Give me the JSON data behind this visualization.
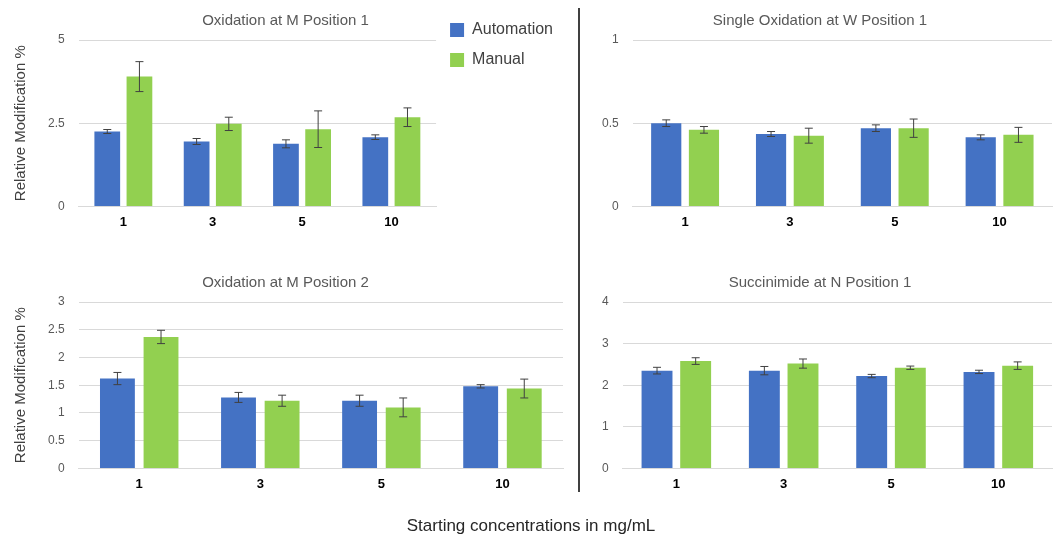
{
  "chart_data": [
    {
      "type": "bar",
      "title": "Oxidation at M Position 1",
      "ylabel": "Relative Modification %",
      "categories": [
        "1",
        "3",
        "5",
        "10"
      ],
      "ylim": [
        0,
        5
      ],
      "yticks": [
        0,
        2.5,
        5
      ],
      "grid": "y",
      "legend": "top right",
      "series": [
        {
          "name": "Automation",
          "color": "#4472c4",
          "values": [
            2.25,
            1.95,
            1.88,
            2.08
          ],
          "errors": [
            0.06,
            0.09,
            0.12,
            0.07
          ]
        },
        {
          "name": "Manual",
          "color": "#92d050",
          "values": [
            3.9,
            2.48,
            2.32,
            2.68
          ],
          "errors": [
            0.45,
            0.2,
            0.55,
            0.28
          ]
        }
      ]
    },
    {
      "type": "bar",
      "title": "Single Oxidation at W Position 1",
      "categories": [
        "1",
        "3",
        "5",
        "10"
      ],
      "ylim": [
        0,
        1
      ],
      "yticks": [
        0,
        0.5,
        1
      ],
      "grid": "y",
      "series": [
        {
          "color": "#4472c4",
          "values": [
            0.5,
            0.435,
            0.47,
            0.415
          ],
          "errors": [
            0.02,
            0.015,
            0.02,
            0.015
          ]
        },
        {
          "color": "#92d050",
          "values": [
            0.46,
            0.425,
            0.47,
            0.43
          ],
          "errors": [
            0.02,
            0.045,
            0.055,
            0.045
          ]
        }
      ]
    },
    {
      "type": "bar",
      "title": "Oxidation at M Position 2",
      "ylabel": "Relative Modification %",
      "xlabel": "Starting concentrations in mg/mL",
      "categories": [
        "1",
        "3",
        "5",
        "10"
      ],
      "ylim": [
        0,
        3
      ],
      "yticks": [
        0,
        0.5,
        1,
        1.5,
        2,
        2.5,
        3
      ],
      "grid": "y",
      "series": [
        {
          "color": "#4472c4",
          "values": [
            1.62,
            1.28,
            1.22,
            1.48
          ],
          "errors": [
            0.11,
            0.09,
            0.1,
            0.03
          ]
        },
        {
          "color": "#92d050",
          "values": [
            2.37,
            1.22,
            1.1,
            1.44
          ],
          "errors": [
            0.12,
            0.1,
            0.17,
            0.17
          ]
        }
      ]
    },
    {
      "type": "bar",
      "title": "Succinimide at N Position 1",
      "categories": [
        "1",
        "3",
        "5",
        "10"
      ],
      "ylim": [
        0,
        4
      ],
      "yticks": [
        0,
        1,
        2,
        3,
        4
      ],
      "grid": "y",
      "series": [
        {
          "color": "#4472c4",
          "values": [
            2.35,
            2.35,
            2.22,
            2.32
          ],
          "errors": [
            0.08,
            0.1,
            0.04,
            0.04
          ]
        },
        {
          "color": "#92d050",
          "values": [
            2.58,
            2.52,
            2.42,
            2.47
          ],
          "errors": [
            0.08,
            0.11,
            0.04,
            0.09
          ]
        }
      ]
    }
  ]
}
